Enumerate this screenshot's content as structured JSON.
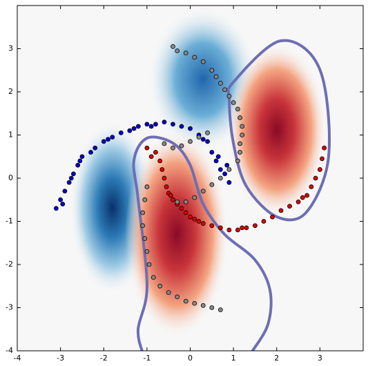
{
  "chart_data": {
    "type": "scatter",
    "xlim": [
      -4,
      4
    ],
    "ylim": [
      -4,
      4
    ],
    "xticks": [
      -4,
      -3,
      -2,
      -1,
      0,
      1,
      2,
      3
    ],
    "yticks": [
      -4,
      -3,
      -2,
      -1,
      0,
      1,
      2,
      3
    ],
    "series": [
      {
        "color": "#0000cc",
        "x": [
          -3.1,
          -3.0,
          -2.9,
          -2.8,
          -2.7,
          -2.6,
          -2.5,
          -2.3,
          -2.2,
          -2.0,
          -1.8,
          -1.6,
          -1.4,
          -1.2,
          -1.0,
          -0.8,
          -0.6,
          -0.4,
          -0.2,
          0.0,
          0.2,
          0.4,
          0.5,
          0.6,
          0.7,
          0.8,
          0.9,
          0.85,
          -2.95,
          -2.55,
          -1.9,
          -0.9,
          0.3,
          0.65,
          -2.75,
          -1.3
        ],
        "y": [
          -0.7,
          -0.5,
          -0.3,
          -0.1,
          0.1,
          0.3,
          0.5,
          0.6,
          0.7,
          0.85,
          0.95,
          1.05,
          1.1,
          1.2,
          1.25,
          1.25,
          1.3,
          1.25,
          1.2,
          1.15,
          1.0,
          0.85,
          0.6,
          0.4,
          0.2,
          0.1,
          -0.1,
          0.3,
          -0.6,
          0.4,
          0.9,
          1.2,
          0.9,
          0.5,
          0.0,
          1.15
        ]
      },
      {
        "color": "#dd0000",
        "x": [
          -1.0,
          -0.8,
          -0.7,
          -0.65,
          -0.6,
          -0.55,
          -0.5,
          -0.4,
          -0.3,
          -0.2,
          -0.1,
          0.1,
          0.3,
          0.5,
          0.7,
          0.9,
          1.1,
          1.3,
          1.5,
          1.7,
          1.9,
          2.1,
          2.3,
          2.5,
          2.7,
          2.8,
          2.9,
          3.0,
          3.05,
          3.1,
          -0.9,
          0.2,
          1.2,
          2.6,
          -0.45,
          0.0
        ],
        "y": [
          0.7,
          0.6,
          0.4,
          0.2,
          0.0,
          -0.2,
          -0.35,
          -0.5,
          -0.6,
          -0.7,
          -0.8,
          -0.95,
          -1.05,
          -1.1,
          -1.15,
          -1.2,
          -1.2,
          -1.15,
          -1.1,
          -1.0,
          -0.9,
          -0.75,
          -0.65,
          -0.55,
          -0.4,
          -0.2,
          0.0,
          0.2,
          0.45,
          0.7,
          0.5,
          -1.0,
          -1.15,
          -0.45,
          -0.4,
          -0.9
        ]
      },
      {
        "color": "#888888",
        "x": [
          -0.4,
          -0.3,
          -0.1,
          0.1,
          0.3,
          0.5,
          0.6,
          0.7,
          0.8,
          0.9,
          1.0,
          1.1,
          1.15,
          1.2,
          1.2,
          1.15,
          1.15,
          1.1,
          0.9,
          0.7,
          0.5,
          0.3,
          0.1,
          -0.1,
          -0.3,
          -1.0,
          -1.05,
          -1.1,
          -1.1,
          -1.05,
          -1.0,
          -0.95,
          -0.85,
          -0.7,
          -0.5,
          -0.3,
          -0.1,
          0.1,
          0.3,
          0.5,
          0.7,
          -0.6,
          -0.4,
          -0.2,
          0.0,
          0.2,
          0.4
        ],
        "y": [
          3.05,
          2.95,
          2.9,
          2.8,
          2.7,
          2.5,
          2.35,
          2.2,
          2.05,
          1.9,
          1.75,
          1.6,
          1.4,
          1.2,
          1.0,
          0.8,
          0.6,
          0.4,
          0.2,
          0.0,
          -0.15,
          -0.3,
          -0.45,
          -0.55,
          -0.55,
          -0.2,
          -0.5,
          -0.8,
          -1.1,
          -1.4,
          -1.7,
          -2.0,
          -2.3,
          -2.5,
          -2.65,
          -2.75,
          -2.85,
          -2.9,
          -2.95,
          -3.0,
          -3.05,
          0.8,
          0.7,
          0.75,
          0.85,
          0.95,
          1.05
        ]
      }
    ]
  }
}
